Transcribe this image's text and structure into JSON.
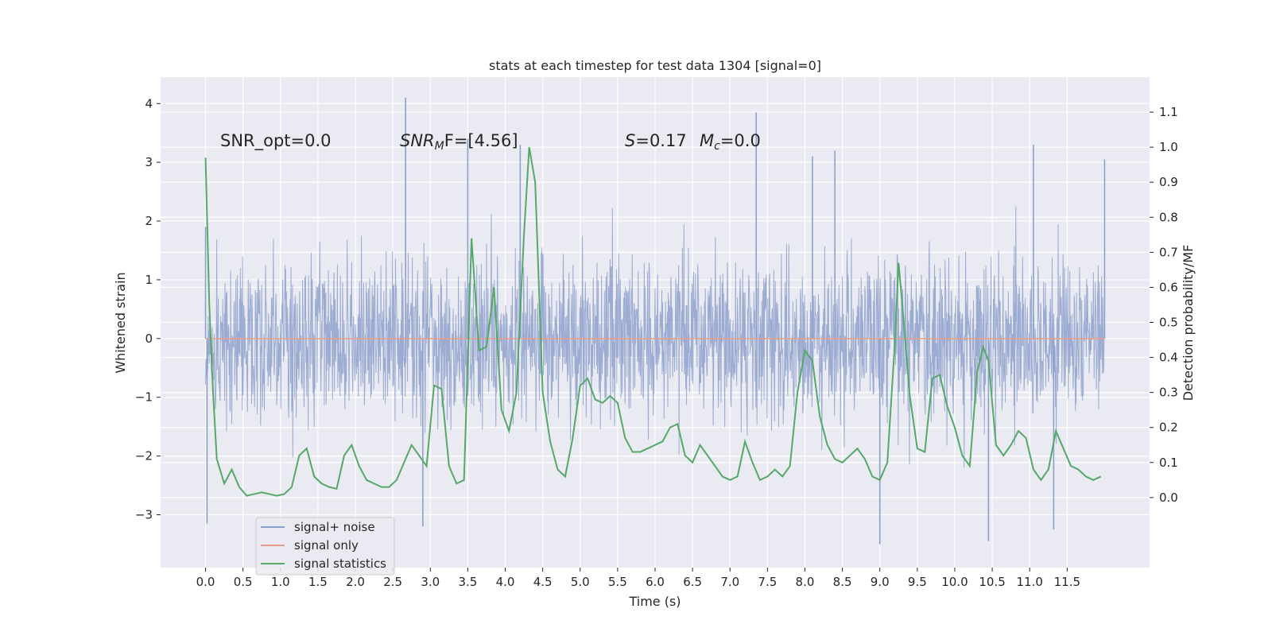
{
  "chart_data": {
    "type": "line",
    "title": "stats at each timestep for test data 1304 [signal=0]",
    "xlabel": "Time (s)",
    "ylabel": "Whitened strain",
    "y2label": "Detection probability/MF",
    "xlim": [
      -0.6,
      12.6
    ],
    "ylim": [
      -3.9,
      4.45
    ],
    "y2lim": [
      -0.2,
      1.2
    ],
    "x_ticks": [
      0.0,
      0.5,
      1.0,
      1.5,
      2.0,
      2.5,
      3.0,
      3.5,
      4.0,
      4.5,
      5.0,
      5.5,
      6.0,
      6.5,
      7.0,
      7.5,
      8.0,
      8.5,
      9.0,
      9.5,
      10.0,
      10.5,
      11.0,
      11.5
    ],
    "x_tick_labels": [
      "0.0",
      "0.5",
      "1.0",
      "1.5",
      "2.0",
      "2.5",
      "3.0",
      "3.5",
      "4.0",
      "4.5",
      "5.0",
      "5.5",
      "6.0",
      "6.5",
      "7.0",
      "7.5",
      "8.0",
      "8.5",
      "9.0",
      "9.5",
      "10.0",
      "10.5",
      "11.0",
      "11.5"
    ],
    "y_ticks": [
      4,
      3,
      2,
      1,
      0,
      -1,
      -2,
      -3
    ],
    "y_tick_labels": [
      "4",
      "3",
      "2",
      "1",
      "0",
      "−1",
      "−2",
      "−3"
    ],
    "y2_ticks": [
      1.1,
      1.0,
      0.9,
      0.8,
      0.7,
      0.6,
      0.5,
      0.4,
      0.3,
      0.2,
      0.1,
      0.0
    ],
    "y2_tick_labels": [
      "1.1",
      "1.0",
      "0.9",
      "0.8",
      "0.7",
      "0.6",
      "0.5",
      "0.4",
      "0.3",
      "0.2",
      "0.1",
      "0.0"
    ],
    "grid": true,
    "legend_position": "bottom-left",
    "annotations": {
      "snr_opt": "SNR_opt=0.0",
      "snr_mf_main": "SNR",
      "snr_mf_sub": "M",
      "snr_mf_rest": "F=[4.56]",
      "s_sym": "S",
      "s_val": "=0.17",
      "mc_sym": "M",
      "mc_sub": "c",
      "mc_val": "=0.0"
    },
    "series": [
      {
        "name": "signal+ noise",
        "axis": "left",
        "color": "#8da0cb",
        "note": "dense whitened noise, approx. uniform amplitude ~±1.5 with occasional spikes to ±4",
        "x_range": [
          0.0,
          12.0
        ],
        "spike_peaks": [
          [
            0.0,
            1.9
          ],
          [
            0.02,
            -3.15
          ],
          [
            2.67,
            4.1
          ],
          [
            2.9,
            -3.2
          ],
          [
            3.5,
            3.4
          ],
          [
            4.2,
            3.3
          ],
          [
            7.35,
            3.85
          ],
          [
            8.1,
            3.1
          ],
          [
            8.4,
            3.2
          ],
          [
            9.0,
            -3.5
          ],
          [
            10.45,
            -3.45
          ],
          [
            11.05,
            3.3
          ],
          [
            11.32,
            -3.25
          ],
          [
            12.0,
            3.05
          ]
        ]
      },
      {
        "name": "signal only",
        "axis": "left",
        "color": "#e6a08a",
        "x": [
          0.0,
          12.0
        ],
        "y": [
          0.0,
          0.0
        ]
      },
      {
        "name": "signal statistics",
        "axis": "right",
        "color": "#55a868",
        "x": [
          0.0,
          0.05,
          0.1,
          0.15,
          0.25,
          0.35,
          0.45,
          0.55,
          0.65,
          0.75,
          0.85,
          0.95,
          1.05,
          1.15,
          1.25,
          1.35,
          1.45,
          1.55,
          1.65,
          1.75,
          1.85,
          1.95,
          2.05,
          2.15,
          2.25,
          2.35,
          2.45,
          2.55,
          2.65,
          2.75,
          2.85,
          2.95,
          3.05,
          3.15,
          3.25,
          3.35,
          3.45,
          3.55,
          3.65,
          3.75,
          3.85,
          3.95,
          4.05,
          4.15,
          4.25,
          4.32,
          4.4,
          4.5,
          4.6,
          4.7,
          4.8,
          4.9,
          5.0,
          5.1,
          5.2,
          5.3,
          5.4,
          5.5,
          5.6,
          5.7,
          5.8,
          5.9,
          6.0,
          6.1,
          6.2,
          6.3,
          6.4,
          6.5,
          6.6,
          6.7,
          6.8,
          6.9,
          7.0,
          7.1,
          7.2,
          7.3,
          7.4,
          7.5,
          7.6,
          7.7,
          7.8,
          7.9,
          8.0,
          8.1,
          8.2,
          8.3,
          8.4,
          8.5,
          8.6,
          8.7,
          8.8,
          8.9,
          9.0,
          9.1,
          9.2,
          9.25,
          9.3,
          9.4,
          9.5,
          9.6,
          9.7,
          9.8,
          9.9,
          10.0,
          10.1,
          10.2,
          10.3,
          10.38,
          10.45,
          10.55,
          10.65,
          10.75,
          10.85,
          10.95,
          11.05,
          11.15,
          11.25,
          11.35,
          11.45,
          11.55,
          11.65,
          11.75,
          11.85,
          11.95
        ],
        "y": [
          0.97,
          0.55,
          0.3,
          0.11,
          0.04,
          0.08,
          0.03,
          0.005,
          0.01,
          0.015,
          0.01,
          0.005,
          0.01,
          0.03,
          0.12,
          0.14,
          0.06,
          0.04,
          0.03,
          0.025,
          0.12,
          0.15,
          0.09,
          0.05,
          0.04,
          0.03,
          0.03,
          0.05,
          0.1,
          0.15,
          0.12,
          0.09,
          0.32,
          0.31,
          0.09,
          0.04,
          0.05,
          0.74,
          0.42,
          0.43,
          0.6,
          0.25,
          0.19,
          0.3,
          0.75,
          1.0,
          0.9,
          0.3,
          0.16,
          0.08,
          0.06,
          0.17,
          0.32,
          0.34,
          0.28,
          0.27,
          0.29,
          0.27,
          0.17,
          0.13,
          0.13,
          0.14,
          0.15,
          0.16,
          0.2,
          0.21,
          0.12,
          0.1,
          0.15,
          0.12,
          0.09,
          0.06,
          0.05,
          0.06,
          0.16,
          0.1,
          0.05,
          0.06,
          0.08,
          0.06,
          0.09,
          0.3,
          0.42,
          0.39,
          0.23,
          0.15,
          0.11,
          0.1,
          0.12,
          0.14,
          0.11,
          0.06,
          0.05,
          0.1,
          0.44,
          0.67,
          0.55,
          0.29,
          0.14,
          0.13,
          0.34,
          0.35,
          0.26,
          0.2,
          0.12,
          0.09,
          0.36,
          0.43,
          0.39,
          0.15,
          0.12,
          0.15,
          0.19,
          0.17,
          0.08,
          0.05,
          0.08,
          0.19,
          0.14,
          0.09,
          0.08,
          0.06,
          0.05,
          0.06
        ]
      }
    ]
  }
}
